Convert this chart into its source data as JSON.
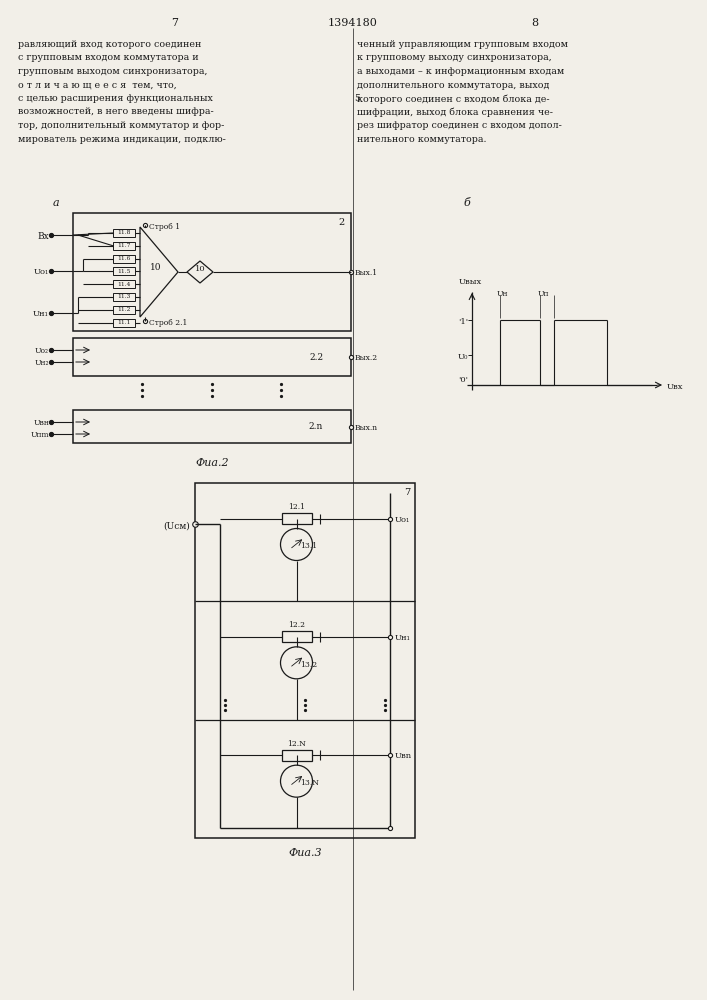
{
  "page_num_left": "7",
  "page_num_center": "1394180",
  "page_num_right": "8",
  "text_left": [
    "равляющий вход которого соединен",
    "с групповым входом коммутатора и",
    "групповым выходом синхронизатора,",
    "о т л и ч а ю щ е е с я  тем, что,",
    "с целью расширения функциональных",
    "возможностей, в него введены шифра-",
    "тор, дополнительный коммутатор и фор-",
    "мирователь режима индикации, подклю-"
  ],
  "text_right": [
    "ченный управляющим групповым входом",
    "к групповому выходу синхронизатора,",
    "а выходами – к информационным входам",
    "дополнительного коммутатора, выход",
    "которого соединен с входом блока де-",
    "шифрации, выход блока сравнения че-",
    "рез шифратор соединен с входом допол-",
    "нительного коммутатора."
  ],
  "fig2_caption": "Фиа.2",
  "fig3_caption": "Фиа.3",
  "bg_color": "#f2efe8",
  "black": "#1a1a1a"
}
